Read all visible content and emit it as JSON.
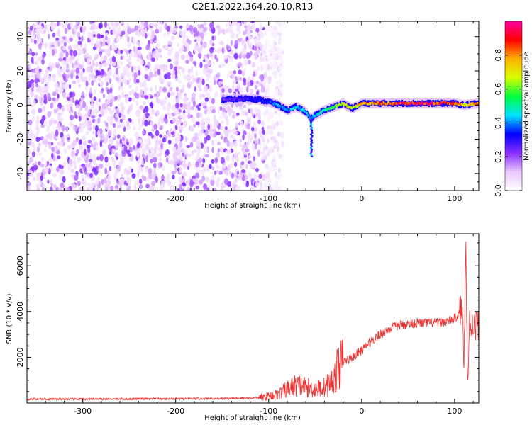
{
  "figure": {
    "title": "C2E1.2022.364.20.10.R13"
  },
  "chart_data": [
    {
      "type": "heatmap",
      "xlabel": "Height of straight line (km)",
      "ylabel": "Frequency (Hz)",
      "xlim": [
        -360,
        126
      ],
      "ylim": [
        -50,
        49
      ],
      "x_ticks": [
        -300,
        -200,
        -100,
        0,
        100
      ],
      "y_ticks": [
        -40,
        -20,
        0,
        20,
        40
      ],
      "grid": false,
      "colorbar": {
        "label": "Normalized spectral amplitude",
        "range": [
          0,
          1
        ],
        "ticks": [
          "0.0",
          "0.2",
          "0.4",
          "0.6",
          "0.8"
        ],
        "colormap": [
          "#ffffff",
          "#e9c6ff",
          "#8a2cff",
          "#0000ff",
          "#00e5ff",
          "#00ff3c",
          "#d8ff00",
          "#ffb000",
          "#ff0000",
          "#ff00a0"
        ]
      },
      "noise_region": {
        "x_range": [
          -360,
          -100
        ],
        "y_range": [
          -50,
          49
        ],
        "amplitude": [
          0.05,
          0.25
        ]
      },
      "ridge": [
        {
          "x": -150,
          "y": 3,
          "amp": 0.25
        },
        {
          "x": -120,
          "y": 4,
          "amp": 0.3
        },
        {
          "x": -100,
          "y": 2,
          "amp": 0.35
        },
        {
          "x": -90,
          "y": 0,
          "amp": 0.4
        },
        {
          "x": -80,
          "y": -3,
          "amp": 0.4
        },
        {
          "x": -70,
          "y": -1,
          "amp": 0.45
        },
        {
          "x": -60,
          "y": -4,
          "amp": 0.45
        },
        {
          "x": -55,
          "y": -8,
          "amp": 0.4
        },
        {
          "x": -50,
          "y": -6,
          "amp": 0.45
        },
        {
          "x": -40,
          "y": -3,
          "amp": 0.5
        },
        {
          "x": -30,
          "y": -1,
          "amp": 0.6
        },
        {
          "x": -20,
          "y": 1,
          "amp": 0.7
        },
        {
          "x": -10,
          "y": -2,
          "amp": 0.65
        },
        {
          "x": 0,
          "y": 1,
          "amp": 0.8
        },
        {
          "x": 20,
          "y": 1,
          "amp": 0.85
        },
        {
          "x": 40,
          "y": 1,
          "amp": 0.9
        },
        {
          "x": 60,
          "y": 1,
          "amp": 0.95
        },
        {
          "x": 80,
          "y": 1,
          "amp": 0.9
        },
        {
          "x": 100,
          "y": 1,
          "amp": 0.85
        },
        {
          "x": 110,
          "y": 0,
          "amp": 0.7
        },
        {
          "x": 126,
          "y": 1,
          "amp": 0.8
        }
      ],
      "tail_feature": {
        "x": -54,
        "y_range": [
          -30,
          -8
        ],
        "amp": 0.4
      }
    },
    {
      "type": "line",
      "xlabel": "Height of straight line (km)",
      "ylabel": "SNR (10 * v/v)",
      "xlim": [
        -360,
        126
      ],
      "ylim": [
        0,
        7400
      ],
      "x_ticks": [
        -300,
        -200,
        -100,
        0,
        100
      ],
      "y_ticks": [
        2000,
        4000,
        6000
      ],
      "grid": false,
      "color": "#ee3333",
      "series": [
        {
          "x": [
            -360,
            -300,
            -250,
            -200,
            -150,
            -110,
            -90,
            -80,
            -70,
            -60,
            -50,
            -40,
            -30,
            -25,
            -20,
            -10,
            0,
            10,
            20,
            30,
            40,
            50,
            60,
            70,
            80,
            90,
            95,
            100,
            105,
            108,
            110,
            112,
            114,
            116,
            118,
            120,
            126
          ],
          "y": [
            170,
            170,
            175,
            185,
            195,
            230,
            380,
            600,
            800,
            700,
            600,
            700,
            1000,
            1600,
            1800,
            2000,
            2300,
            2700,
            3000,
            3250,
            3400,
            3450,
            3500,
            3500,
            3500,
            3550,
            3600,
            3700,
            3900,
            4200,
            2000,
            7000,
            600,
            3500,
            3450,
            3400,
            3450
          ]
        }
      ]
    }
  ]
}
